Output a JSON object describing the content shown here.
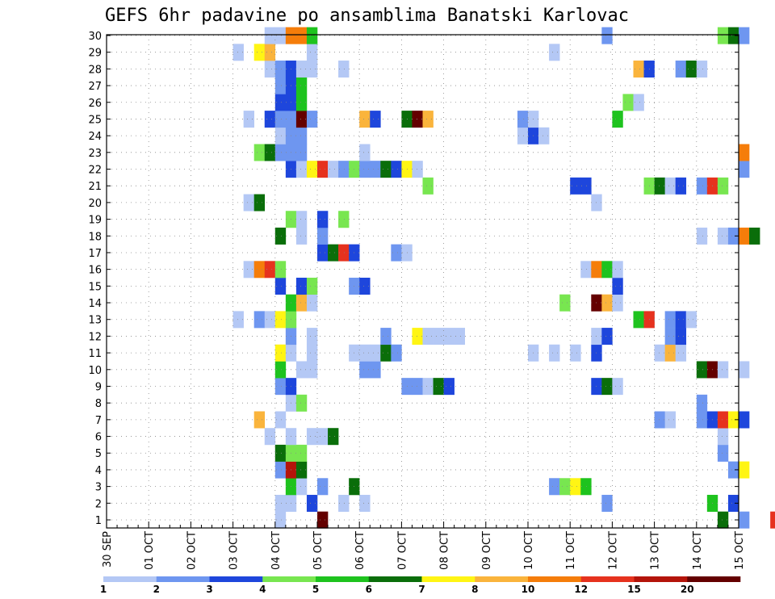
{
  "chart_data": {
    "type": "heatmap",
    "title": "GEFS 6hr padavine po ansamblima Banatski Karlovac",
    "y_ticks": [
      "1",
      "2",
      "3",
      "4",
      "5",
      "6",
      "7",
      "8",
      "9",
      "10",
      "11",
      "12",
      "13",
      "14",
      "15",
      "16",
      "17",
      "18",
      "19",
      "20",
      "21",
      "22",
      "23",
      "24",
      "25",
      "26",
      "27",
      "28",
      "29",
      "30"
    ],
    "x_ticks": [
      "30 SEP",
      "01 OCT",
      "02 OCT",
      "03 OCT",
      "04 OCT",
      "05 OCT",
      "06 OCT",
      "07 OCT",
      "08 OCT",
      "09 OCT",
      "10 OCT",
      "11 OCT",
      "12 OCT",
      "13 OCT",
      "14 OCT",
      "15 OCT"
    ],
    "x_unit": "6-hour steps from 30 SEP",
    "levels": [
      "1",
      "2",
      "3",
      "4",
      "5",
      "6",
      "7",
      "8",
      "10",
      "12",
      "15",
      "20"
    ],
    "palette": [
      "#b4c8f5",
      "#6e96f0",
      "#1e46dc",
      "#78e650",
      "#1ec31e",
      "#0a6e0a",
      "#fff514",
      "#fab43c",
      "#f57d0a",
      "#e6321e",
      "#b4140a",
      "#640000"
    ],
    "cells": [
      [
        0,
        16,
        1
      ],
      [
        0,
        20,
        12
      ],
      [
        0,
        58,
        6
      ],
      [
        0,
        60,
        2
      ],
      [
        0,
        63,
        10
      ],
      [
        1,
        16,
        1
      ],
      [
        1,
        17,
        1
      ],
      [
        1,
        19,
        3
      ],
      [
        1,
        22,
        1
      ],
      [
        1,
        24,
        1
      ],
      [
        1,
        47,
        2
      ],
      [
        1,
        57,
        5
      ],
      [
        1,
        59,
        3
      ],
      [
        2,
        17,
        5
      ],
      [
        2,
        18,
        1
      ],
      [
        2,
        20,
        2
      ],
      [
        2,
        23,
        6
      ],
      [
        2,
        42,
        2
      ],
      [
        2,
        43,
        4
      ],
      [
        2,
        44,
        7
      ],
      [
        2,
        45,
        5
      ],
      [
        3,
        16,
        2
      ],
      [
        3,
        17,
        11
      ],
      [
        3,
        18,
        6
      ],
      [
        3,
        59,
        2
      ],
      [
        3,
        60,
        7
      ],
      [
        4,
        16,
        6
      ],
      [
        4,
        17,
        4
      ],
      [
        4,
        18,
        4
      ],
      [
        4,
        58,
        2
      ],
      [
        5,
        15,
        1
      ],
      [
        5,
        17,
        1
      ],
      [
        5,
        19,
        1
      ],
      [
        5,
        20,
        1
      ],
      [
        5,
        21,
        6
      ],
      [
        5,
        58,
        1
      ],
      [
        6,
        14,
        8
      ],
      [
        6,
        16,
        1
      ],
      [
        6,
        52,
        2
      ],
      [
        6,
        53,
        1
      ],
      [
        6,
        56,
        2
      ],
      [
        6,
        57,
        3
      ],
      [
        6,
        58,
        10
      ],
      [
        6,
        59,
        7
      ],
      [
        6,
        60,
        3
      ],
      [
        7,
        17,
        1
      ],
      [
        7,
        18,
        4
      ],
      [
        7,
        56,
        2
      ],
      [
        8,
        16,
        2
      ],
      [
        8,
        17,
        3
      ],
      [
        8,
        28,
        2
      ],
      [
        8,
        29,
        2
      ],
      [
        8,
        30,
        1
      ],
      [
        8,
        31,
        6
      ],
      [
        8,
        32,
        3
      ],
      [
        8,
        46,
        3
      ],
      [
        8,
        47,
        6
      ],
      [
        8,
        48,
        1
      ],
      [
        9,
        16,
        5
      ],
      [
        9,
        18,
        1
      ],
      [
        9,
        19,
        1
      ],
      [
        9,
        24,
        2
      ],
      [
        9,
        25,
        2
      ],
      [
        9,
        56,
        6
      ],
      [
        9,
        57,
        12
      ],
      [
        9,
        58,
        1
      ],
      [
        9,
        60,
        1
      ],
      [
        10,
        16,
        7
      ],
      [
        10,
        17,
        1
      ],
      [
        10,
        19,
        1
      ],
      [
        10,
        23,
        1
      ],
      [
        10,
        24,
        1
      ],
      [
        10,
        25,
        1
      ],
      [
        10,
        26,
        6
      ],
      [
        10,
        27,
        2
      ],
      [
        10,
        40,
        1
      ],
      [
        10,
        42,
        1
      ],
      [
        10,
        44,
        1
      ],
      [
        10,
        46,
        3
      ],
      [
        10,
        52,
        1
      ],
      [
        10,
        53,
        8
      ],
      [
        10,
        54,
        1
      ],
      [
        11,
        17,
        2
      ],
      [
        11,
        19,
        1
      ],
      [
        11,
        26,
        2
      ],
      [
        11,
        29,
        7
      ],
      [
        11,
        30,
        1
      ],
      [
        11,
        31,
        1
      ],
      [
        11,
        32,
        1
      ],
      [
        11,
        33,
        1
      ],
      [
        11,
        46,
        1
      ],
      [
        11,
        47,
        3
      ],
      [
        11,
        53,
        2
      ],
      [
        11,
        54,
        3
      ],
      [
        12,
        12,
        1
      ],
      [
        12,
        14,
        2
      ],
      [
        12,
        15,
        1
      ],
      [
        12,
        16,
        7
      ],
      [
        12,
        17,
        4
      ],
      [
        12,
        50,
        5
      ],
      [
        12,
        51,
        10
      ],
      [
        12,
        53,
        2
      ],
      [
        12,
        54,
        3
      ],
      [
        12,
        55,
        1
      ],
      [
        13,
        17,
        5
      ],
      [
        13,
        18,
        8
      ],
      [
        13,
        19,
        1
      ],
      [
        13,
        43,
        4
      ],
      [
        13,
        46,
        12
      ],
      [
        13,
        47,
        8
      ],
      [
        13,
        48,
        1
      ],
      [
        14,
        16,
        3
      ],
      [
        14,
        18,
        3
      ],
      [
        14,
        19,
        4
      ],
      [
        14,
        23,
        2
      ],
      [
        14,
        24,
        3
      ],
      [
        14,
        48,
        3
      ],
      [
        15,
        13,
        1
      ],
      [
        15,
        14,
        9
      ],
      [
        15,
        15,
        10
      ],
      [
        15,
        16,
        4
      ],
      [
        15,
        45,
        1
      ],
      [
        15,
        46,
        9
      ],
      [
        15,
        47,
        5
      ],
      [
        15,
        48,
        1
      ],
      [
        16,
        20,
        3
      ],
      [
        16,
        21,
        6
      ],
      [
        16,
        22,
        10
      ],
      [
        16,
        23,
        3
      ],
      [
        16,
        27,
        2
      ],
      [
        16,
        28,
        1
      ],
      [
        17,
        16,
        6
      ],
      [
        17,
        18,
        1
      ],
      [
        17,
        20,
        2
      ],
      [
        17,
        56,
        1
      ],
      [
        17,
        58,
        1
      ],
      [
        17,
        59,
        2
      ],
      [
        17,
        60,
        9
      ],
      [
        17,
        61,
        6
      ],
      [
        18,
        17,
        4
      ],
      [
        18,
        18,
        1
      ],
      [
        18,
        20,
        3
      ],
      [
        18,
        22,
        4
      ],
      [
        19,
        13,
        1
      ],
      [
        19,
        14,
        6
      ],
      [
        19,
        46,
        1
      ],
      [
        20,
        30,
        4
      ],
      [
        20,
        44,
        3
      ],
      [
        20,
        45,
        3
      ],
      [
        20,
        51,
        4
      ],
      [
        20,
        52,
        6
      ],
      [
        20,
        53,
        1
      ],
      [
        20,
        54,
        3
      ],
      [
        20,
        56,
        2
      ],
      [
        20,
        57,
        10
      ],
      [
        20,
        58,
        4
      ],
      [
        21,
        17,
        3
      ],
      [
        21,
        18,
        1
      ],
      [
        21,
        19,
        7
      ],
      [
        21,
        20,
        10
      ],
      [
        21,
        21,
        1
      ],
      [
        21,
        22,
        2
      ],
      [
        21,
        23,
        4
      ],
      [
        21,
        24,
        2
      ],
      [
        21,
        25,
        2
      ],
      [
        21,
        26,
        6
      ],
      [
        21,
        27,
        3
      ],
      [
        21,
        28,
        7
      ],
      [
        21,
        29,
        1
      ],
      [
        21,
        60,
        2
      ],
      [
        22,
        14,
        4
      ],
      [
        22,
        15,
        6
      ],
      [
        22,
        16,
        2
      ],
      [
        22,
        17,
        2
      ],
      [
        22,
        18,
        2
      ],
      [
        22,
        24,
        1
      ],
      [
        22,
        60,
        9
      ],
      [
        23,
        16,
        1
      ],
      [
        23,
        17,
        2
      ],
      [
        23,
        18,
        2
      ],
      [
        23,
        39,
        1
      ],
      [
        23,
        40,
        3
      ],
      [
        23,
        41,
        1
      ],
      [
        24,
        13,
        1
      ],
      [
        24,
        15,
        3
      ],
      [
        24,
        16,
        2
      ],
      [
        24,
        17,
        2
      ],
      [
        24,
        18,
        12
      ],
      [
        24,
        19,
        2
      ],
      [
        24,
        24,
        8
      ],
      [
        24,
        25,
        3
      ],
      [
        24,
        28,
        6
      ],
      [
        24,
        29,
        12
      ],
      [
        24,
        30,
        8
      ],
      [
        24,
        39,
        2
      ],
      [
        24,
        40,
        1
      ],
      [
        24,
        48,
        5
      ],
      [
        25,
        16,
        3
      ],
      [
        25,
        17,
        3
      ],
      [
        25,
        18,
        5
      ],
      [
        25,
        49,
        4
      ],
      [
        25,
        50,
        1
      ],
      [
        26,
        16,
        2
      ],
      [
        26,
        17,
        3
      ],
      [
        26,
        18,
        5
      ],
      [
        27,
        15,
        1
      ],
      [
        27,
        16,
        2
      ],
      [
        27,
        17,
        3
      ],
      [
        27,
        18,
        1
      ],
      [
        27,
        19,
        1
      ],
      [
        27,
        22,
        1
      ],
      [
        27,
        50,
        8
      ],
      [
        27,
        51,
        3
      ],
      [
        27,
        54,
        2
      ],
      [
        27,
        55,
        6
      ],
      [
        27,
        56,
        1
      ],
      [
        28,
        12,
        1
      ],
      [
        28,
        14,
        7
      ],
      [
        28,
        15,
        8
      ],
      [
        28,
        19,
        1
      ],
      [
        28,
        42,
        1
      ],
      [
        29,
        15,
        1
      ],
      [
        29,
        16,
        1
      ],
      [
        29,
        17,
        9
      ],
      [
        29,
        18,
        9
      ],
      [
        29,
        19,
        5
      ],
      [
        29,
        47,
        2
      ],
      [
        29,
        58,
        4
      ],
      [
        29,
        59,
        6
      ],
      [
        29,
        60,
        2
      ]
    ]
  }
}
